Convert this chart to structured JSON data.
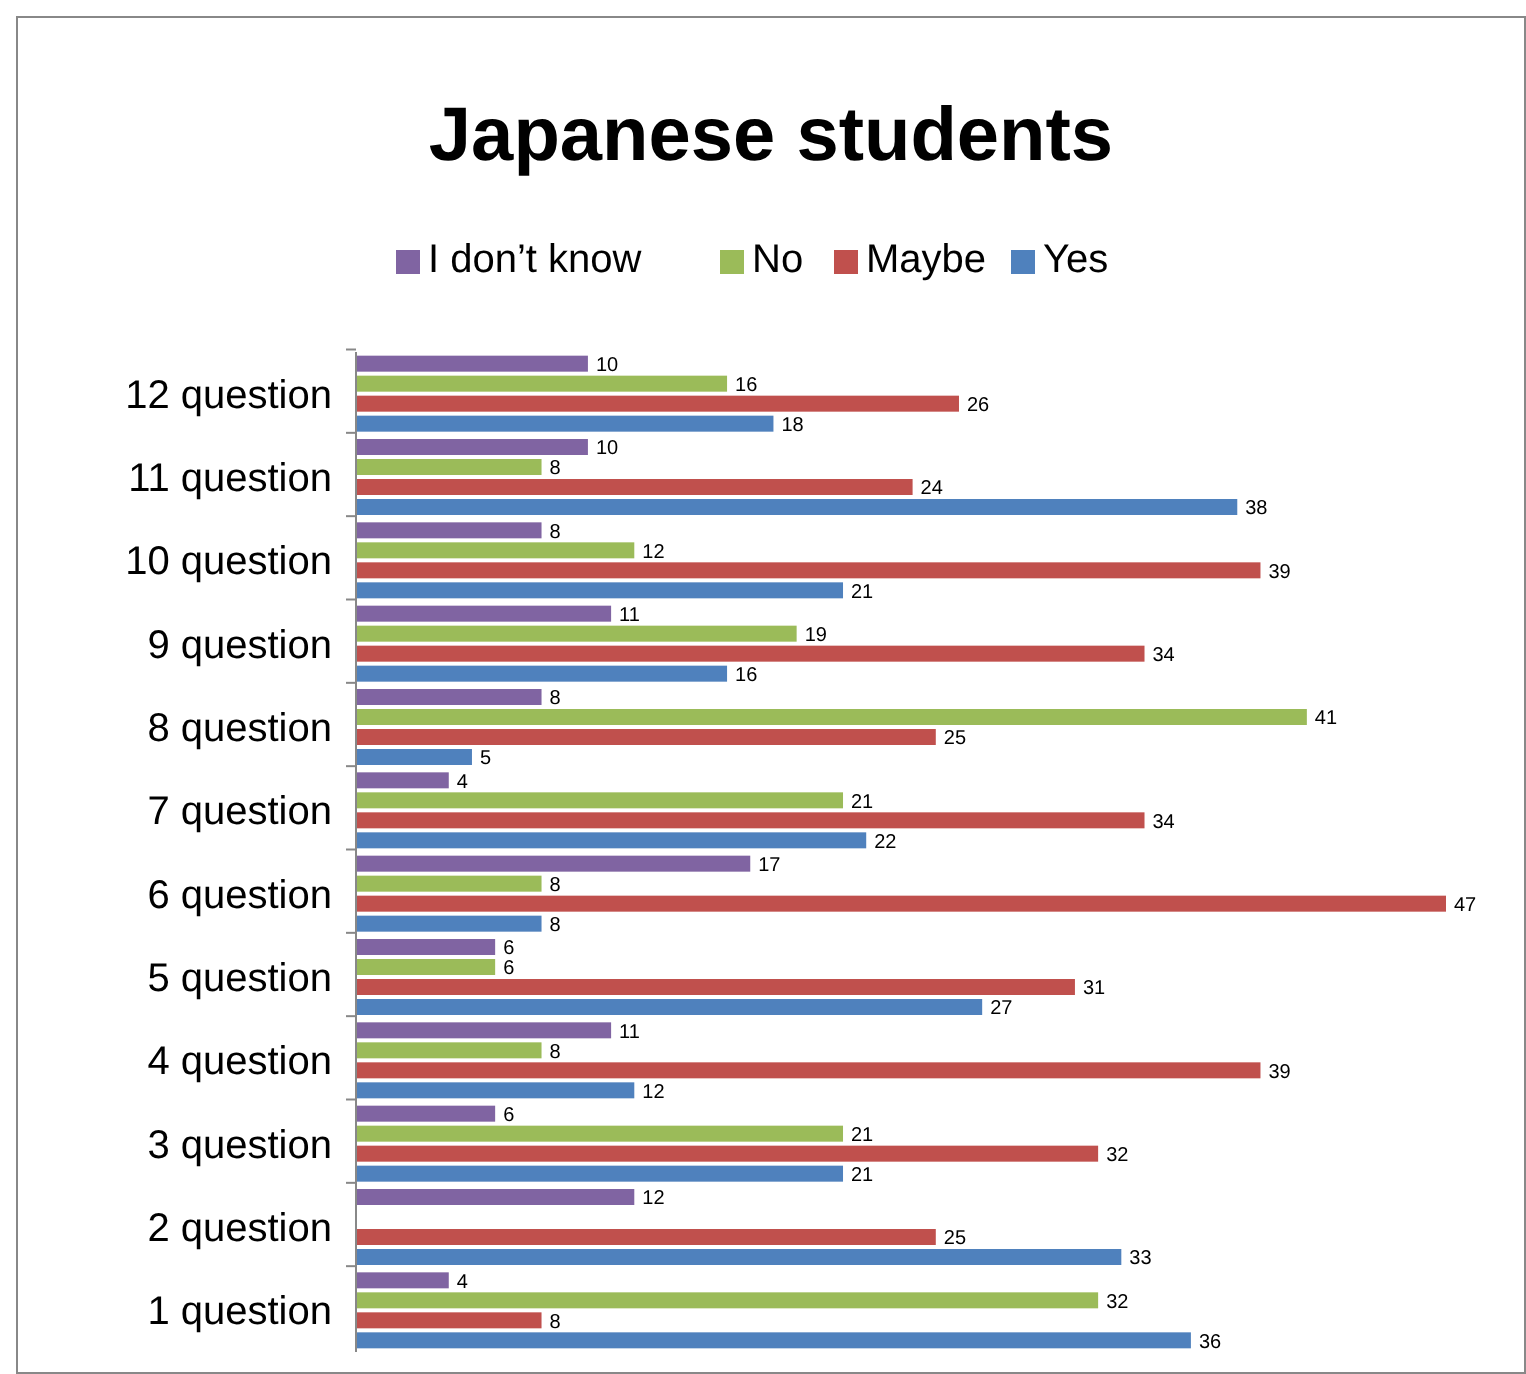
{
  "chart_data": {
    "type": "bar",
    "orientation": "horizontal",
    "title": "Japanese students",
    "categories": [
      "12 question",
      "11 question",
      "10 question",
      "9 question",
      "8 question",
      "7 question",
      "6 question",
      "5 question",
      "4 question",
      "3 question",
      "2 question",
      "1 question"
    ],
    "series": [
      {
        "name": "I don’t know",
        "color": "#8064a2",
        "values": [
          10,
          10,
          8,
          11,
          8,
          4,
          17,
          6,
          11,
          6,
          12,
          4
        ]
      },
      {
        "name": "No",
        "color": "#9bbb59",
        "values": [
          16,
          8,
          12,
          19,
          41,
          21,
          8,
          6,
          8,
          21,
          null,
          32
        ]
      },
      {
        "name": "Maybe",
        "color": "#c0504d",
        "values": [
          26,
          24,
          39,
          34,
          25,
          34,
          47,
          31,
          39,
          32,
          25,
          8
        ]
      },
      {
        "name": "Yes",
        "color": "#4f81bd",
        "values": [
          18,
          38,
          21,
          16,
          5,
          22,
          8,
          27,
          12,
          21,
          33,
          36
        ]
      }
    ],
    "data_labels": true,
    "legend": "top",
    "grid": false
  }
}
